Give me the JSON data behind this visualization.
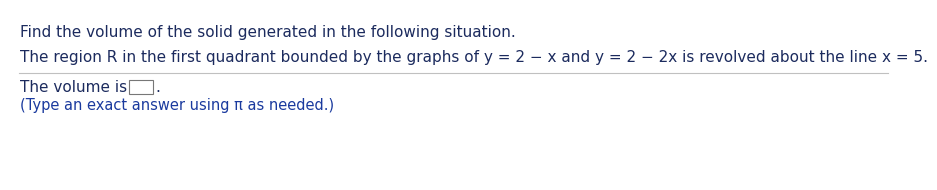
{
  "line1": "Find the volume of the solid generated in the following situation.",
  "line2": "The region R in the first quadrant bounded by the graphs of y = 2 − x and y = 2 − 2x is revolved about the line x = 5.",
  "line3_prefix": "The volume is ",
  "line4": "(Type an exact answer using π as needed.)",
  "text_color_top": "#1c2b5e",
  "text_color_bottom": "#1a3a9e",
  "background_color": "#ffffff",
  "font_size_main": 11.0,
  "font_size_sub": 10.5,
  "line_color": "#c0c0c0"
}
